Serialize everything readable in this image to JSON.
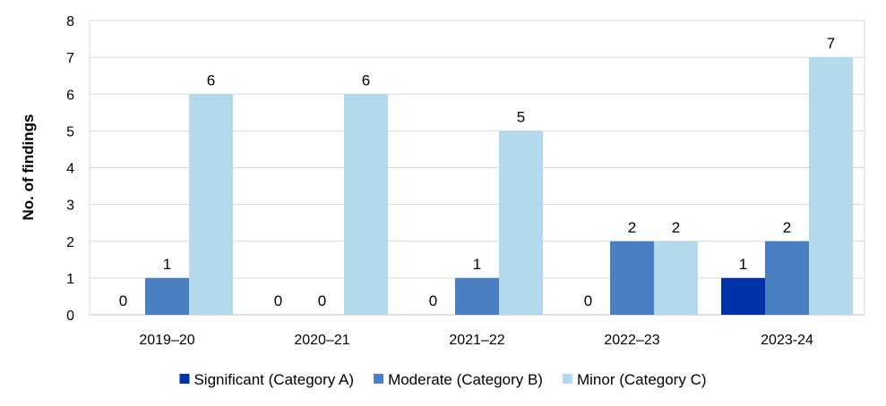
{
  "chart_data": {
    "type": "bar",
    "categories": [
      "2019–20",
      "2020–21",
      "2021–22",
      "2022–23",
      "2023-24"
    ],
    "series": [
      {
        "name": "Significant (Category A)",
        "values": [
          0,
          0,
          0,
          0,
          1
        ],
        "color": "#0033A8"
      },
      {
        "name": "Moderate (Category B)",
        "values": [
          1,
          0,
          1,
          2,
          2
        ],
        "color": "#4A7FC1"
      },
      {
        "name": "Minor (Category C)",
        "values": [
          6,
          6,
          5,
          2,
          7
        ],
        "color": "#B3D9EC"
      }
    ],
    "data_labels": [
      [
        "0",
        "1",
        "6"
      ],
      [
        "0",
        "0",
        "6"
      ],
      [
        "0",
        "1",
        "5"
      ],
      [
        "0",
        "2",
        "2"
      ],
      [
        "1",
        "2",
        "7"
      ]
    ],
    "title": "",
    "xlabel": "",
    "ylabel": "No. of findings",
    "ylim": [
      0,
      8
    ],
    "yticks": [
      "0",
      "1",
      "2",
      "3",
      "4",
      "5",
      "6",
      "7",
      "8"
    ],
    "grid": true,
    "grid_color": "#D9D9D9",
    "legend_position": "bottom"
  }
}
